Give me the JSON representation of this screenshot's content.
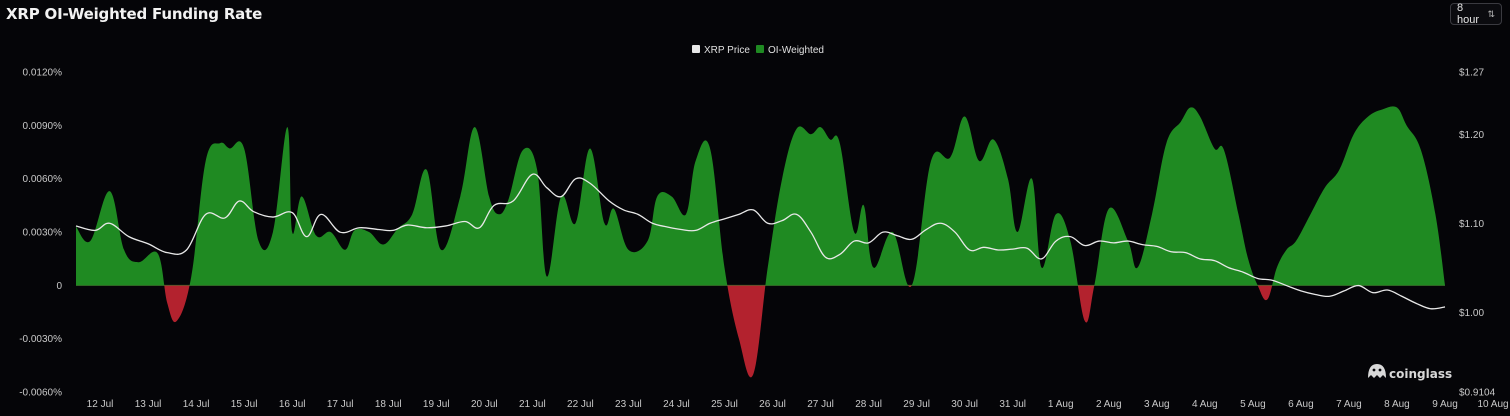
{
  "header": {
    "title": "XRP OI-Weighted Funding Rate",
    "interval": "8 hour"
  },
  "brand": "coinglass",
  "colors": {
    "positive": "#1f8a22",
    "negative": "#b3222e",
    "price_line": "#e8e8e8",
    "zero_line": "#2a7a2a"
  },
  "chart_data": {
    "type": "area",
    "x_labels": [
      "12 Jul",
      "13 Jul",
      "14 Jul",
      "15 Jul",
      "16 Jul",
      "17 Jul",
      "18 Jul",
      "19 Jul",
      "20 Jul",
      "21 Jul",
      "22 Jul",
      "23 Jul",
      "24 Jul",
      "25 Jul",
      "26 Jul",
      "27 Jul",
      "28 Jul",
      "29 Jul",
      "30 Jul",
      "31 Jul",
      "1 Aug",
      "2 Aug",
      "3 Aug",
      "4 Aug",
      "5 Aug",
      "6 Aug",
      "7 Aug",
      "8 Aug",
      "9 Aug",
      "10 Aug"
    ],
    "left_axis": {
      "ticks": [
        "0.0120%",
        "0.0090%",
        "0.0060%",
        "0.0030%",
        "0",
        "-0.0030%",
        "-0.0060%"
      ],
      "ylim": [
        -0.006,
        0.012
      ]
    },
    "right_axis": {
      "ticks": [
        "$1.27",
        "$1.20",
        "$1.10",
        "$1.00",
        "$0.9104"
      ],
      "ylim": [
        0.9104,
        1.27
      ]
    },
    "legend": [
      "XRP Price",
      "OI-Weighted"
    ],
    "legend_position": "top-center",
    "series": [
      {
        "name": "OI-Weighted",
        "axis": "left",
        "x": [
          11.5,
          11.8,
          12.2,
          12.5,
          12.8,
          13.2,
          13.4,
          13.6,
          13.9,
          14.2,
          14.5,
          14.7,
          15.0,
          15.3,
          15.6,
          15.9,
          16.0,
          16.2,
          16.5,
          16.8,
          17.1,
          17.3,
          17.6,
          17.9,
          18.2,
          18.5,
          18.8,
          19.1,
          19.5,
          19.8,
          20.1,
          20.3,
          20.5,
          20.8,
          21.1,
          21.3,
          21.6,
          21.9,
          22.2,
          22.5,
          22.7,
          23.0,
          23.4,
          23.6,
          23.9,
          24.2,
          24.4,
          24.7,
          25.0,
          25.3,
          25.6,
          25.9,
          26.2,
          26.5,
          26.8,
          27.0,
          27.2,
          27.4,
          27.7,
          27.9,
          28.1,
          28.5,
          28.9,
          29.3,
          29.7,
          30.0,
          30.3,
          30.6,
          30.9,
          31.1,
          31.4,
          31.6,
          31.9,
          32.2,
          32.5,
          32.7,
          33.0,
          33.4,
          33.6,
          33.9,
          34.2,
          34.5,
          34.7,
          34.9,
          35.2,
          35.4,
          35.7,
          35.9,
          36.1,
          36.3,
          36.5,
          36.7,
          36.9,
          37.2,
          37.5,
          37.8,
          38.1,
          38.4,
          38.7,
          39.0,
          39.2,
          39.5,
          39.8,
          40.0
        ],
        "values": [
          0.0033,
          0.0025,
          0.0053,
          0.002,
          0.0013,
          0.0018,
          -0.001,
          -0.002,
          0.0005,
          0.007,
          0.008,
          0.0077,
          0.0077,
          0.0025,
          0.003,
          0.0089,
          0.003,
          0.005,
          0.0028,
          0.003,
          0.002,
          0.0031,
          0.003,
          0.0023,
          0.0032,
          0.004,
          0.0065,
          0.002,
          0.005,
          0.0089,
          0.005,
          0.004,
          0.0048,
          0.0076,
          0.0065,
          0.0005,
          0.005,
          0.0035,
          0.0077,
          0.0035,
          0.0043,
          0.002,
          0.0025,
          0.005,
          0.005,
          0.004,
          0.007,
          0.0077,
          0.001,
          -0.003,
          -0.005,
          0.001,
          0.006,
          0.0088,
          0.0085,
          0.0089,
          0.0082,
          0.008,
          0.003,
          0.0045,
          0.001,
          0.003,
          0.0,
          0.007,
          0.0072,
          0.0095,
          0.007,
          0.0082,
          0.006,
          0.003,
          0.006,
          0.001,
          0.004,
          0.0025,
          -0.002,
          0.0,
          0.0043,
          0.0025,
          0.001,
          0.004,
          0.008,
          0.0092,
          0.01,
          0.0095,
          0.0077,
          0.0076,
          0.004,
          0.0015,
          0.0,
          -0.0008,
          0.001,
          0.002,
          0.0025,
          0.004,
          0.0055,
          0.0065,
          0.0085,
          0.0095,
          0.0099,
          0.01,
          0.009,
          0.0076,
          0.004,
          0.0
        ]
      },
      {
        "name": "XRP Price",
        "axis": "right",
        "x": [
          11.5,
          11.9,
          12.2,
          12.6,
          13.0,
          13.4,
          13.8,
          14.2,
          14.6,
          14.9,
          15.2,
          15.6,
          16.0,
          16.3,
          16.6,
          17.0,
          17.4,
          17.8,
          18.1,
          18.4,
          18.8,
          19.2,
          19.6,
          19.9,
          20.2,
          20.6,
          21.0,
          21.3,
          21.6,
          21.9,
          22.2,
          22.6,
          22.9,
          23.2,
          23.5,
          23.8,
          24.1,
          24.4,
          24.7,
          25.0,
          25.3,
          25.6,
          25.9,
          26.2,
          26.5,
          26.8,
          27.1,
          27.4,
          27.7,
          28.0,
          28.3,
          28.6,
          28.9,
          29.2,
          29.5,
          29.8,
          30.1,
          30.4,
          30.7,
          31.0,
          31.3,
          31.6,
          31.9,
          32.2,
          32.5,
          32.8,
          33.1,
          33.4,
          33.7,
          34.0,
          34.3,
          34.6,
          34.9,
          35.2,
          35.5,
          35.8,
          36.1,
          36.4,
          36.7,
          37.0,
          37.3,
          37.6,
          37.9,
          38.2,
          38.5,
          38.8,
          39.1,
          39.4,
          39.7,
          40.0
        ],
        "values": [
          1.097,
          1.092,
          1.1,
          1.085,
          1.077,
          1.067,
          1.07,
          1.11,
          1.106,
          1.125,
          1.113,
          1.107,
          1.112,
          1.085,
          1.11,
          1.09,
          1.095,
          1.093,
          1.092,
          1.098,
          1.095,
          1.097,
          1.102,
          1.095,
          1.12,
          1.125,
          1.155,
          1.14,
          1.13,
          1.15,
          1.145,
          1.125,
          1.115,
          1.11,
          1.1,
          1.096,
          1.093,
          1.092,
          1.1,
          1.105,
          1.11,
          1.115,
          1.1,
          1.103,
          1.11,
          1.09,
          1.062,
          1.065,
          1.08,
          1.078,
          1.09,
          1.086,
          1.082,
          1.093,
          1.1,
          1.09,
          1.07,
          1.073,
          1.07,
          1.071,
          1.072,
          1.06,
          1.08,
          1.085,
          1.075,
          1.08,
          1.078,
          1.08,
          1.076,
          1.074,
          1.068,
          1.067,
          1.06,
          1.058,
          1.05,
          1.045,
          1.038,
          1.036,
          1.03,
          1.024,
          1.02,
          1.018,
          1.024,
          1.03,
          1.022,
          1.025,
          1.018,
          1.01,
          1.004,
          1.006
        ]
      }
    ]
  }
}
